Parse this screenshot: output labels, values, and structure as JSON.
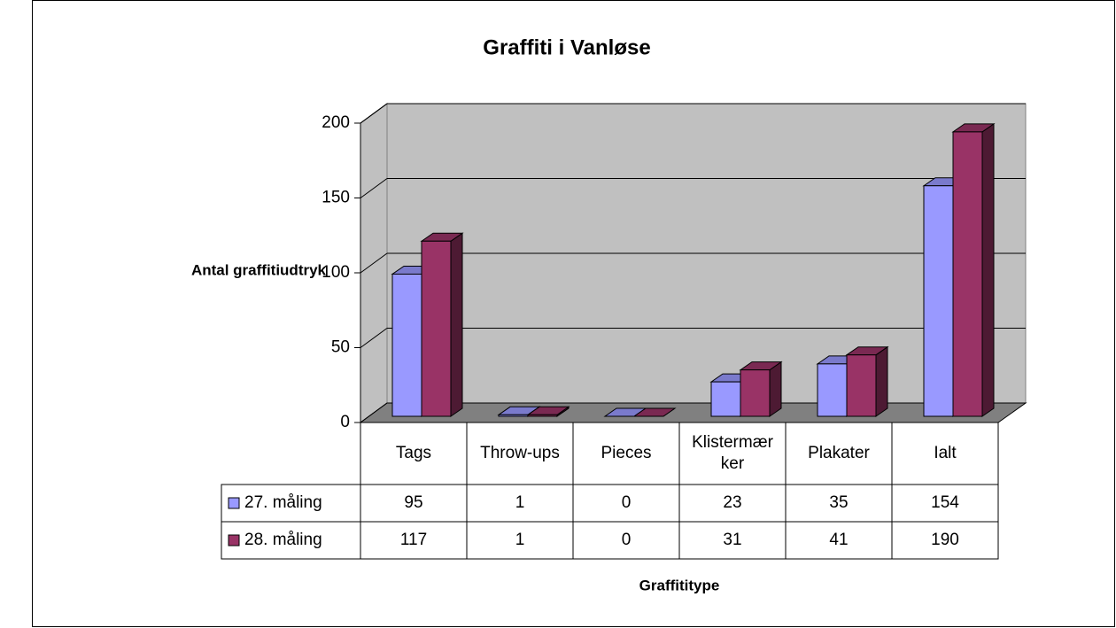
{
  "chart_data": {
    "type": "bar3d",
    "title": "Graffiti i Vanløse",
    "y_label": "Antal graffitiudtryk",
    "x_label": "Graffititype",
    "categories": [
      "Tags",
      "Throw-ups",
      "Pieces",
      "Klistermærker",
      "Plakater",
      "Ialt"
    ],
    "series": [
      {
        "name": "27. måling",
        "color": "#9999ff",
        "values": [
          95,
          1,
          0,
          23,
          35,
          154
        ]
      },
      {
        "name": "28. måling",
        "color": "#993366",
        "values": [
          117,
          1,
          0,
          31,
          41,
          190
        ]
      }
    ],
    "ylim": [
      0,
      200
    ],
    "yticks": [
      0,
      50,
      100,
      150,
      200
    ],
    "grid": true
  }
}
